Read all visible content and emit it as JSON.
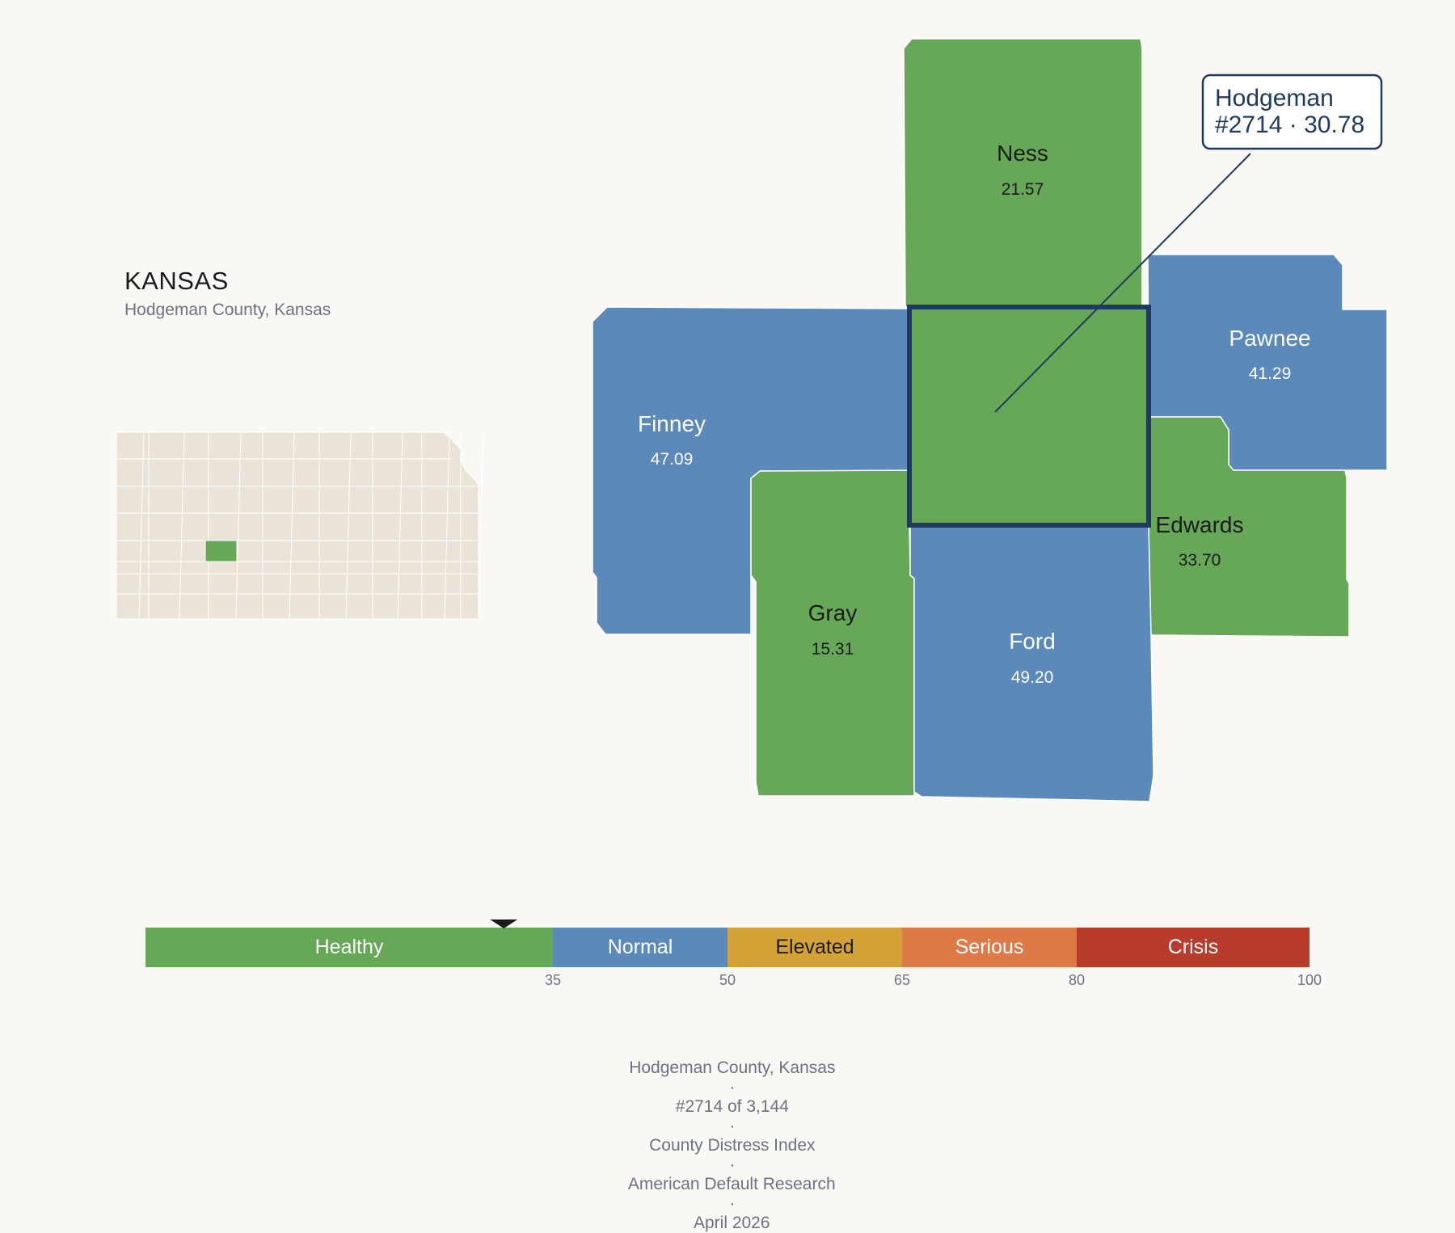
{
  "state": {
    "name": "KANSAS",
    "subtitle": "Hodgeman County, Kansas"
  },
  "colors": {
    "healthy": "#66a758",
    "normal": "#5b89b9",
    "elevated": "#d4a236",
    "serious": "#dd7a47",
    "crisis": "#b93b2b",
    "inset_fill": "#e9e3d8",
    "highlight_border": "#1f3a5e",
    "background": "#f9f8f5"
  },
  "counties": [
    {
      "name": "Ness",
      "value": "21.57",
      "category": "healthy"
    },
    {
      "name": "Pawnee",
      "value": "41.29",
      "category": "normal"
    },
    {
      "name": "Finney",
      "value": "47.09",
      "category": "normal"
    },
    {
      "name": "Edwards",
      "value": "33.70",
      "category": "healthy"
    },
    {
      "name": "Gray",
      "value": "15.31",
      "category": "healthy"
    },
    {
      "name": "Ford",
      "value": "49.20",
      "category": "normal"
    },
    {
      "name": "Hodgeman",
      "value": "30.78",
      "category": "healthy",
      "selected": true
    }
  ],
  "callout": {
    "line1": "Hodgeman",
    "line2": "#2714 · 30.78"
  },
  "legend": {
    "marker_value": 30.78,
    "bands": [
      {
        "label": "Healthy",
        "from": 0,
        "to": 35,
        "category": "healthy"
      },
      {
        "label": "Normal",
        "from": 35,
        "to": 50,
        "category": "normal"
      },
      {
        "label": "Elevated",
        "from": 50,
        "to": 65,
        "category": "elevated"
      },
      {
        "label": "Serious",
        "from": 65,
        "to": 80,
        "category": "serious"
      },
      {
        "label": "Crisis",
        "from": 80,
        "to": 100,
        "category": "crisis"
      }
    ],
    "ticks": [
      "35",
      "50",
      "65",
      "80",
      "100"
    ]
  },
  "footer": {
    "items": [
      "Hodgeman County, Kansas",
      "#2714 of 3,144",
      "County Distress Index",
      "American Default Research",
      "April 2026"
    ]
  }
}
